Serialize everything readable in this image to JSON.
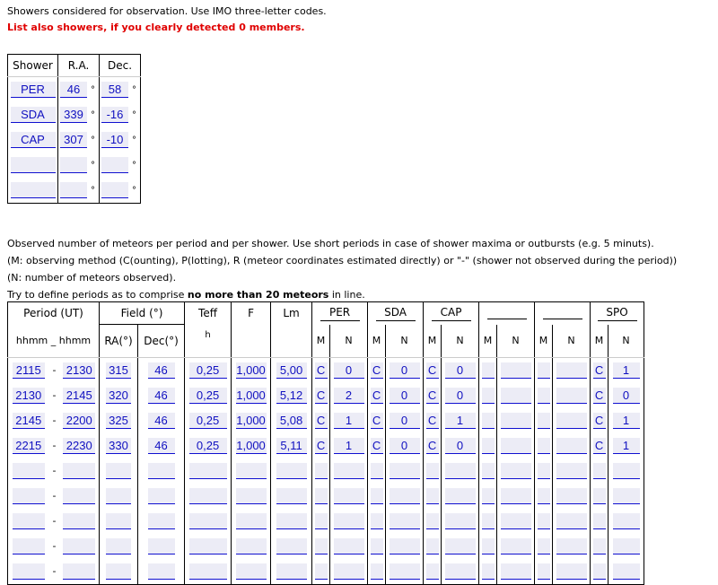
{
  "intro": {
    "line1": "Showers considered for observation. Use IMO three-letter codes.",
    "line2": "List also showers, if you clearly detected 0 members."
  },
  "showers_table": {
    "headers": [
      "Shower",
      "R.A.",
      "Dec."
    ],
    "degree_symbol": "°",
    "rows": [
      {
        "code": "PER",
        "ra": "46",
        "dec": "58"
      },
      {
        "code": "SDA",
        "ra": "339",
        "dec": "-16"
      },
      {
        "code": "CAP",
        "ra": "307",
        "dec": "-10"
      },
      {
        "code": "",
        "ra": "",
        "dec": ""
      },
      {
        "code": "",
        "ra": "",
        "dec": ""
      }
    ]
  },
  "instructions": {
    "line1": "Observed number of meteors per period and per shower. Use short periods in case of shower maxima or outbursts (e.g. 5 minuts).",
    "line2": "(M: observing method (C(ounting), P(lotting), R (meteor coordinates estimated directly) or \"-\" (shower not observed during the period))",
    "line3": "(N: number of meteors observed).",
    "line4_pre": "Try to define periods as to comprise ",
    "line4_bold": "no more than 20 meteors",
    "line4_post": " in line."
  },
  "obs_table": {
    "period_header": "Period (UT)",
    "period_sub_from": "hhmm",
    "period_sub_sep": "_",
    "period_sub_to": "hhmm",
    "field_header": "Field (°)",
    "ra_header": "RA(°)",
    "dec_header": "Dec(°)",
    "teff_header": "Teff",
    "teff_unit": "h",
    "f_header": "F",
    "lm_header": "Lm",
    "m_label": "M",
    "n_label": "N",
    "range_sep": "-",
    "showers": [
      "PER",
      "SDA",
      "CAP",
      "",
      "",
      "SPO"
    ],
    "rows": [
      {
        "from": "2115",
        "to": "2130",
        "ra": "315",
        "dec": "46",
        "teff": "0,25",
        "f": "1,000",
        "lm": "5,00",
        "counts": [
          [
            "C",
            "0"
          ],
          [
            "C",
            "0"
          ],
          [
            "C",
            "0"
          ],
          [
            "",
            ""
          ],
          [
            "",
            ""
          ],
          [
            "C",
            "1"
          ]
        ]
      },
      {
        "from": "2130",
        "to": "2145",
        "ra": "320",
        "dec": "46",
        "teff": "0,25",
        "f": "1,000",
        "lm": "5,12",
        "counts": [
          [
            "C",
            "2"
          ],
          [
            "C",
            "0"
          ],
          [
            "C",
            "0"
          ],
          [
            "",
            ""
          ],
          [
            "",
            ""
          ],
          [
            "C",
            "0"
          ]
        ]
      },
      {
        "from": "2145",
        "to": "2200",
        "ra": "325",
        "dec": "46",
        "teff": "0,25",
        "f": "1,000",
        "lm": "5,08",
        "counts": [
          [
            "C",
            "1"
          ],
          [
            "C",
            "0"
          ],
          [
            "C",
            "1"
          ],
          [
            "",
            ""
          ],
          [
            "",
            ""
          ],
          [
            "C",
            "1"
          ]
        ]
      },
      {
        "from": "2215",
        "to": "2230",
        "ra": "330",
        "dec": "46",
        "teff": "0,25",
        "f": "1,000",
        "lm": "5,11",
        "counts": [
          [
            "C",
            "1"
          ],
          [
            "C",
            "0"
          ],
          [
            "C",
            "0"
          ],
          [
            "",
            ""
          ],
          [
            "",
            ""
          ],
          [
            "C",
            "1"
          ]
        ]
      },
      {
        "from": "",
        "to": "",
        "ra": "",
        "dec": "",
        "teff": "",
        "f": "",
        "lm": "",
        "counts": [
          [
            "",
            ""
          ],
          [
            "",
            ""
          ],
          [
            "",
            ""
          ],
          [
            "",
            ""
          ],
          [
            "",
            ""
          ],
          [
            "",
            ""
          ]
        ]
      },
      {
        "from": "",
        "to": "",
        "ra": "",
        "dec": "",
        "teff": "",
        "f": "",
        "lm": "",
        "counts": [
          [
            "",
            ""
          ],
          [
            "",
            ""
          ],
          [
            "",
            ""
          ],
          [
            "",
            ""
          ],
          [
            "",
            ""
          ],
          [
            "",
            ""
          ]
        ]
      },
      {
        "from": "",
        "to": "",
        "ra": "",
        "dec": "",
        "teff": "",
        "f": "",
        "lm": "",
        "counts": [
          [
            "",
            ""
          ],
          [
            "",
            ""
          ],
          [
            "",
            ""
          ],
          [
            "",
            ""
          ],
          [
            "",
            ""
          ],
          [
            "",
            ""
          ]
        ]
      },
      {
        "from": "",
        "to": "",
        "ra": "",
        "dec": "",
        "teff": "",
        "f": "",
        "lm": "",
        "counts": [
          [
            "",
            ""
          ],
          [
            "",
            ""
          ],
          [
            "",
            ""
          ],
          [
            "",
            ""
          ],
          [
            "",
            ""
          ],
          [
            "",
            ""
          ]
        ]
      },
      {
        "from": "",
        "to": "",
        "ra": "",
        "dec": "",
        "teff": "",
        "f": "",
        "lm": "",
        "counts": [
          [
            "",
            ""
          ],
          [
            "",
            ""
          ],
          [
            "",
            ""
          ],
          [
            "",
            ""
          ],
          [
            "",
            ""
          ],
          [
            "",
            ""
          ]
        ]
      }
    ]
  }
}
